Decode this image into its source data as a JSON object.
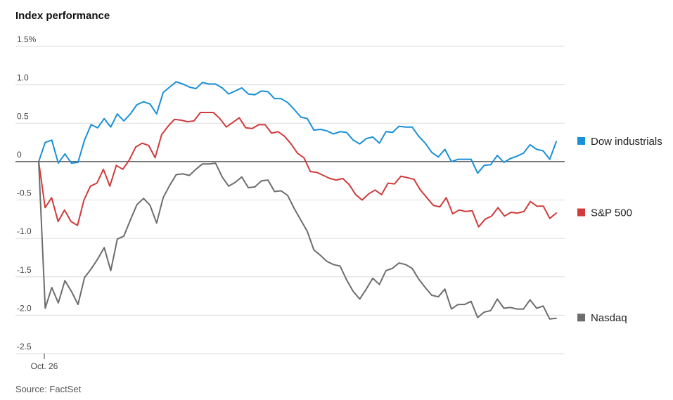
{
  "chart_data": {
    "type": "line",
    "title": "Index performance",
    "source": "Source: FactSet",
    "ylim": [
      -2.5,
      1.5
    ],
    "y_ticks": [
      {
        "value": 1.5,
        "label": "1.5%"
      },
      {
        "value": 1.0,
        "label": "1.0"
      },
      {
        "value": 0.5,
        "label": "0.5"
      },
      {
        "value": 0,
        "label": "0"
      },
      {
        "value": -0.5,
        "label": "-0.5"
      },
      {
        "value": -1.0,
        "label": "-1.0"
      },
      {
        "value": -1.5,
        "label": "-1.5"
      },
      {
        "value": -2.0,
        "label": "-2.0"
      },
      {
        "value": -2.5,
        "label": "-2.5"
      }
    ],
    "x_tick_label": "Oct. 26",
    "grid": true,
    "legend_position": "right",
    "series": [
      {
        "name": "Dow industrials",
        "color": "#1a90d8",
        "values": [
          0,
          0.25,
          0.28,
          -0.02,
          0.1,
          -0.02,
          -0.01,
          0.28,
          0.48,
          0.44,
          0.56,
          0.45,
          0.62,
          0.53,
          0.62,
          0.74,
          0.78,
          0.75,
          0.62,
          0.9,
          0.97,
          1.04,
          1.01,
          0.97,
          0.95,
          1.03,
          1.01,
          1.01,
          0.96,
          0.88,
          0.92,
          0.96,
          0.88,
          0.87,
          0.92,
          0.91,
          0.82,
          0.82,
          0.77,
          0.68,
          0.58,
          0.56,
          0.41,
          0.42,
          0.4,
          0.36,
          0.39,
          0.38,
          0.28,
          0.23,
          0.3,
          0.32,
          0.24,
          0.39,
          0.38,
          0.46,
          0.45,
          0.45,
          0.33,
          0.24,
          0.12,
          0.06,
          0.16,
          0.0,
          0.03,
          0.03,
          0.03,
          -0.15,
          -0.05,
          -0.04,
          0.08,
          -0.01,
          0.04,
          0.07,
          0.11,
          0.22,
          0.16,
          0.14,
          0.03,
          0.26
        ]
      },
      {
        "name": "S&P 500",
        "color": "#d03b3b",
        "values": [
          0,
          -0.6,
          -0.47,
          -0.78,
          -0.63,
          -0.78,
          -0.83,
          -0.5,
          -0.32,
          -0.28,
          -0.1,
          -0.32,
          -0.05,
          -0.1,
          0.02,
          0.19,
          0.24,
          0.21,
          0.05,
          0.35,
          0.46,
          0.55,
          0.54,
          0.52,
          0.53,
          0.64,
          0.64,
          0.64,
          0.56,
          0.45,
          0.51,
          0.57,
          0.44,
          0.43,
          0.48,
          0.48,
          0.37,
          0.39,
          0.33,
          0.23,
          0.11,
          0.05,
          -0.13,
          -0.14,
          -0.18,
          -0.22,
          -0.24,
          -0.22,
          -0.3,
          -0.43,
          -0.5,
          -0.42,
          -0.37,
          -0.43,
          -0.28,
          -0.29,
          -0.19,
          -0.21,
          -0.23,
          -0.37,
          -0.47,
          -0.57,
          -0.59,
          -0.47,
          -0.68,
          -0.63,
          -0.65,
          -0.64,
          -0.85,
          -0.75,
          -0.71,
          -0.6,
          -0.71,
          -0.66,
          -0.67,
          -0.65,
          -0.52,
          -0.58,
          -0.58,
          -0.74,
          -0.67
        ]
      },
      {
        "name": "Nasdaq",
        "color": "#6d6d6d",
        "values": [
          0,
          -1.91,
          -1.64,
          -1.84,
          -1.55,
          -1.69,
          -1.86,
          -1.51,
          -1.4,
          -1.27,
          -1.12,
          -1.42,
          -1.01,
          -0.97,
          -0.76,
          -0.56,
          -0.48,
          -0.57,
          -0.8,
          -0.47,
          -0.31,
          -0.17,
          -0.16,
          -0.18,
          -0.1,
          -0.03,
          -0.03,
          -0.02,
          -0.2,
          -0.32,
          -0.27,
          -0.2,
          -0.34,
          -0.33,
          -0.25,
          -0.24,
          -0.39,
          -0.38,
          -0.44,
          -0.61,
          -0.76,
          -0.91,
          -1.15,
          -1.22,
          -1.3,
          -1.34,
          -1.36,
          -1.54,
          -1.69,
          -1.79,
          -1.66,
          -1.52,
          -1.6,
          -1.42,
          -1.39,
          -1.32,
          -1.34,
          -1.39,
          -1.53,
          -1.64,
          -1.74,
          -1.76,
          -1.66,
          -1.92,
          -1.86,
          -1.86,
          -1.82,
          -2.03,
          -1.96,
          -1.94,
          -1.79,
          -1.91,
          -1.9,
          -1.92,
          -1.92,
          -1.8,
          -1.91,
          -1.88,
          -2.05,
          -2.04
        ]
      }
    ]
  }
}
